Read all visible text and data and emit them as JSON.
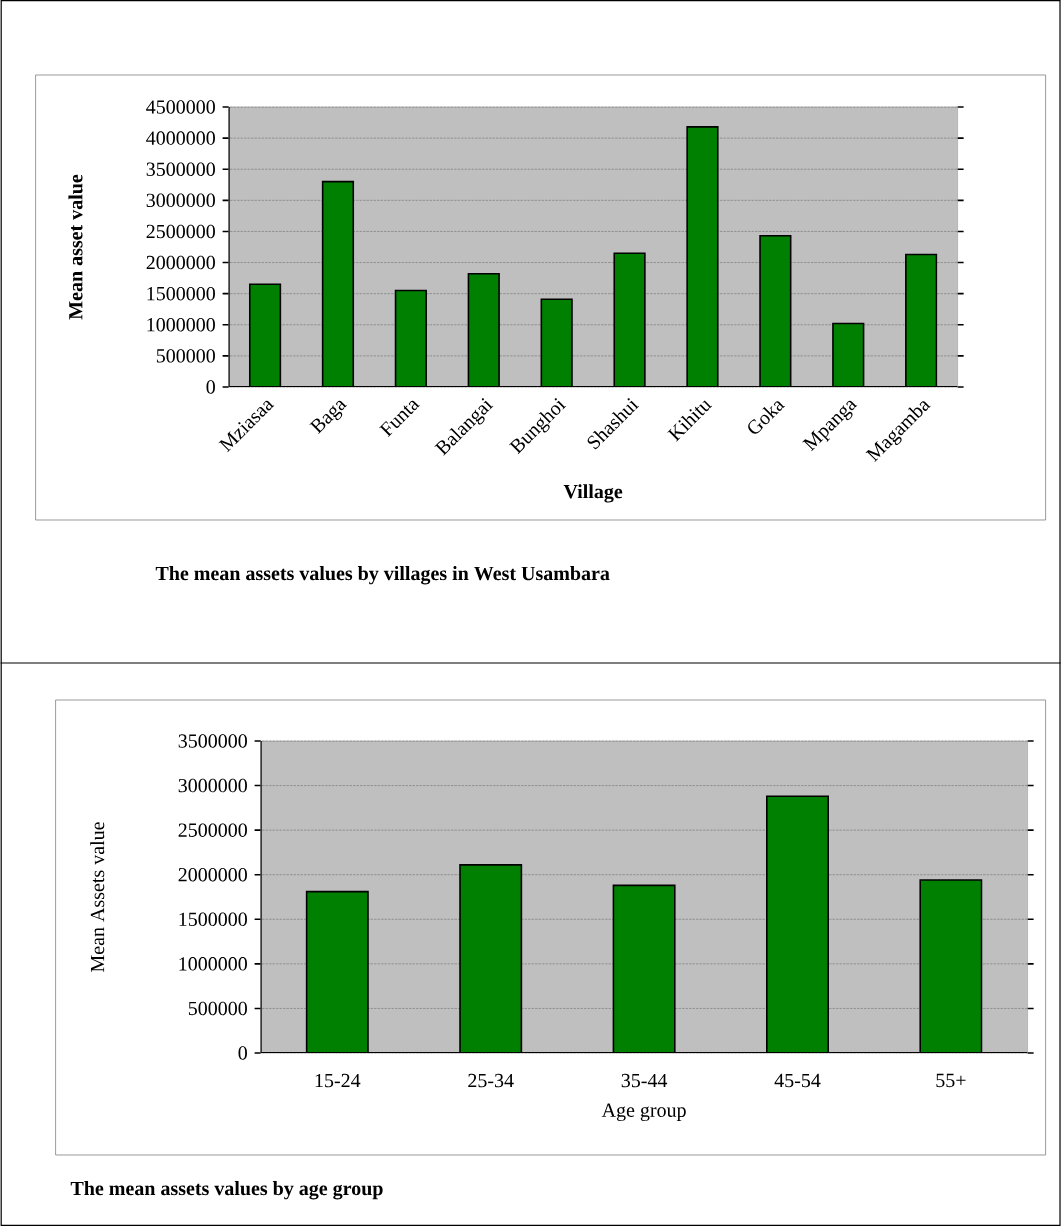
{
  "chart_data": [
    {
      "type": "bar",
      "title": "The mean assets values by villages in West Usambara",
      "xlabel": "Village",
      "ylabel": "Mean asset value",
      "categories": [
        "Mziasaa",
        "Baga",
        "Funta",
        "Balangai",
        "Bunghoi",
        "Shashui",
        "Kihitu",
        "Goka",
        "Mpanga",
        "Magamba"
      ],
      "values": [
        1650000,
        3300000,
        1550000,
        1820000,
        1410000,
        2150000,
        4180000,
        2430000,
        1020000,
        2130000
      ],
      "color": "#008000",
      "ylim": [
        0,
        4500000
      ],
      "yticks": [
        0,
        500000,
        1000000,
        1500000,
        2000000,
        2500000,
        3000000,
        3500000,
        4000000,
        4500000
      ],
      "grid": "y"
    },
    {
      "type": "bar",
      "title": "The mean assets values by age group",
      "xlabel": "Age group",
      "ylabel": "Mean Assets value",
      "categories": [
        "15-24",
        "25-34",
        "35-44",
        "45-54",
        "55+"
      ],
      "values": [
        1810000,
        2110000,
        1880000,
        2880000,
        1940000
      ],
      "color": "#008000",
      "ylim": [
        0,
        3500000
      ],
      "yticks": [
        0,
        500000,
        1000000,
        1500000,
        2000000,
        2500000,
        3000000,
        3500000
      ],
      "grid": "y"
    }
  ]
}
